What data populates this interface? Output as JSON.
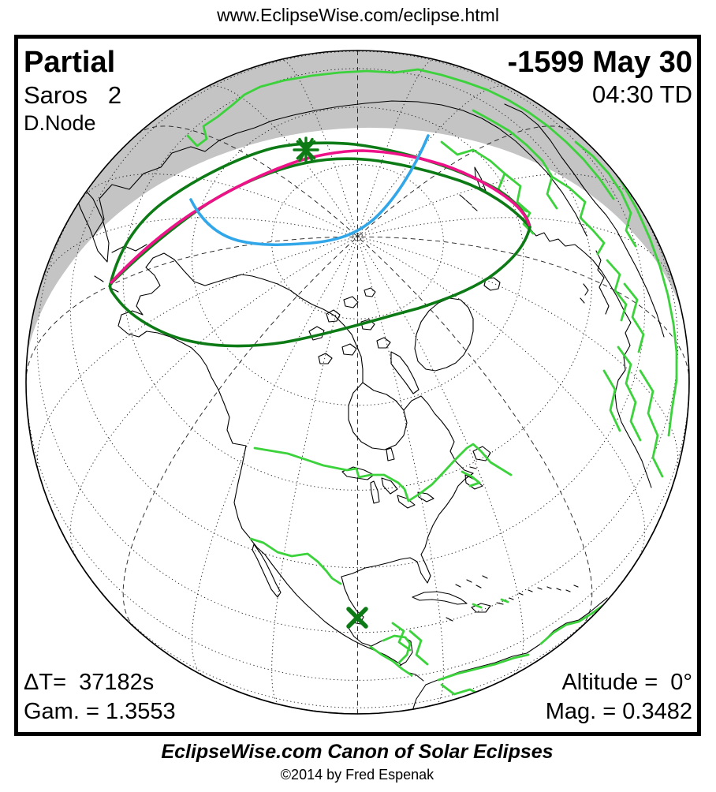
{
  "header": {
    "url": "www.EclipseWise.com/eclipse.html"
  },
  "panel": {
    "type_label": "Partial",
    "saros_label": "Saros   2",
    "node_label": "D.Node",
    "date_label": "-1599 May 30",
    "time_label": "04:30 TD",
    "delta_t_label": "ΔT=  37182s",
    "gamma_label": "Gam. = 1.3553",
    "altitude_label": "Altitude =  0°",
    "magnitude_label": "Mag. = 0.3482"
  },
  "footer": {
    "title": "EclipseWise.com Canon of Solar Eclipses",
    "copyright": "©2014 by Fred Espenak"
  },
  "markers": {
    "greatest_eclipse": "asterisk-icon",
    "sub_solar_point": "x-icon"
  },
  "colors": {
    "ink": "#000000",
    "night": "#c4c4c4",
    "coast": "#000000",
    "green": "#3bd23b",
    "darkgreen": "#0d7b15",
    "magenta": "#ee1188",
    "blue": "#31a7e9"
  }
}
